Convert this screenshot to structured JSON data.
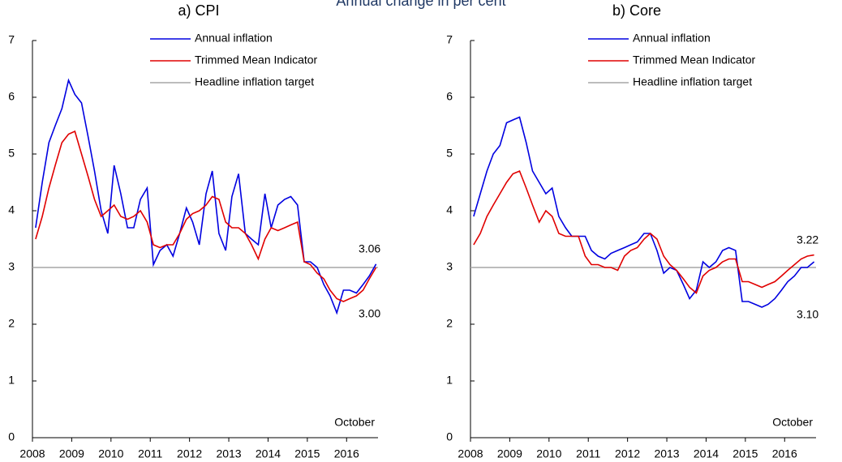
{
  "title": "Annual change in per cent",
  "chart_data": [
    {
      "type": "line",
      "title": "a) CPI",
      "note": "October",
      "x": [
        2008.08,
        2008.25,
        2008.42,
        2008.58,
        2008.75,
        2008.92,
        2009.08,
        2009.25,
        2009.42,
        2009.58,
        2009.75,
        2009.92,
        2010.08,
        2010.25,
        2010.42,
        2010.58,
        2010.75,
        2010.92,
        2011.08,
        2011.25,
        2011.42,
        2011.58,
        2011.75,
        2011.92,
        2012.08,
        2012.25,
        2012.42,
        2012.58,
        2012.75,
        2012.92,
        2013.08,
        2013.25,
        2013.42,
        2013.58,
        2013.75,
        2013.92,
        2014.08,
        2014.25,
        2014.42,
        2014.58,
        2014.75,
        2014.92,
        2015.08,
        2015.25,
        2015.42,
        2015.58,
        2015.75,
        2015.92,
        2016.08,
        2016.25,
        2016.42,
        2016.58,
        2016.75
      ],
      "xlim": [
        2008,
        2016.8
      ],
      "xticks": [
        2008,
        2009,
        2010,
        2011,
        2012,
        2013,
        2014,
        2015,
        2016
      ],
      "ylim": [
        0,
        7
      ],
      "yticks": [
        0,
        1,
        2,
        3,
        4,
        5,
        6,
        7
      ],
      "target": {
        "name": "Headline inflation target",
        "color": "#a6a6a6",
        "value": 3
      },
      "series": [
        {
          "name": "Annual inflation",
          "color": "#0000e0",
          "end_label": "3.06",
          "values": [
            3.7,
            4.5,
            5.2,
            5.5,
            5.8,
            6.3,
            6.05,
            5.9,
            5.3,
            4.7,
            4.0,
            3.6,
            4.8,
            4.3,
            3.7,
            3.7,
            4.2,
            4.4,
            3.05,
            3.3,
            3.4,
            3.2,
            3.6,
            4.05,
            3.8,
            3.4,
            4.3,
            4.7,
            3.6,
            3.3,
            4.25,
            4.65,
            3.6,
            3.5,
            3.4,
            4.3,
            3.7,
            4.1,
            4.2,
            4.25,
            4.1,
            3.1,
            3.1,
            3.0,
            2.7,
            2.5,
            2.2,
            2.6,
            2.6,
            2.55,
            2.7,
            2.85,
            3.06
          ]
        },
        {
          "name": "Trimmed Mean Indicator",
          "color": "#e00000",
          "end_label": "3.00",
          "values": [
            3.5,
            3.9,
            4.4,
            4.8,
            5.2,
            5.35,
            5.4,
            5.0,
            4.6,
            4.2,
            3.9,
            4.0,
            4.1,
            3.9,
            3.85,
            3.9,
            4.0,
            3.8,
            3.4,
            3.35,
            3.4,
            3.4,
            3.6,
            3.85,
            3.95,
            4.0,
            4.1,
            4.25,
            4.2,
            3.8,
            3.7,
            3.7,
            3.6,
            3.4,
            3.15,
            3.5,
            3.7,
            3.65,
            3.7,
            3.75,
            3.8,
            3.1,
            3.05,
            2.9,
            2.8,
            2.6,
            2.45,
            2.4,
            2.45,
            2.5,
            2.6,
            2.8,
            3.0
          ]
        }
      ]
    },
    {
      "type": "line",
      "title": "b) Core",
      "note": "October",
      "x": [
        2008.08,
        2008.25,
        2008.42,
        2008.58,
        2008.75,
        2008.92,
        2009.08,
        2009.25,
        2009.42,
        2009.58,
        2009.75,
        2009.92,
        2010.08,
        2010.25,
        2010.42,
        2010.58,
        2010.75,
        2010.92,
        2011.08,
        2011.25,
        2011.42,
        2011.58,
        2011.75,
        2011.92,
        2012.08,
        2012.25,
        2012.42,
        2012.58,
        2012.75,
        2012.92,
        2013.08,
        2013.25,
        2013.42,
        2013.58,
        2013.75,
        2013.92,
        2014.08,
        2014.25,
        2014.42,
        2014.58,
        2014.75,
        2014.92,
        2015.08,
        2015.25,
        2015.42,
        2015.58,
        2015.75,
        2015.92,
        2016.08,
        2016.25,
        2016.42,
        2016.58,
        2016.75
      ],
      "xlim": [
        2008,
        2016.8
      ],
      "xticks": [
        2008,
        2009,
        2010,
        2011,
        2012,
        2013,
        2014,
        2015,
        2016
      ],
      "ylim": [
        0,
        7
      ],
      "yticks": [
        0,
        1,
        2,
        3,
        4,
        5,
        6,
        7
      ],
      "target": {
        "name": "Headline inflation target",
        "color": "#a6a6a6",
        "value": 3
      },
      "series": [
        {
          "name": "Annual inflation",
          "color": "#0000e0",
          "end_label": "3.10",
          "values": [
            3.9,
            4.3,
            4.7,
            5.0,
            5.15,
            5.55,
            5.6,
            5.65,
            5.2,
            4.7,
            4.5,
            4.3,
            4.4,
            3.9,
            3.7,
            3.55,
            3.55,
            3.55,
            3.3,
            3.2,
            3.15,
            3.25,
            3.3,
            3.35,
            3.4,
            3.45,
            3.6,
            3.6,
            3.3,
            2.9,
            3.0,
            2.95,
            2.7,
            2.45,
            2.6,
            3.1,
            3.0,
            3.1,
            3.3,
            3.35,
            3.3,
            2.4,
            2.4,
            2.35,
            2.3,
            2.35,
            2.45,
            2.6,
            2.75,
            2.85,
            3.0,
            3.0,
            3.1
          ]
        },
        {
          "name": "Trimmed Mean Indicator",
          "color": "#e00000",
          "end_label": "3.22",
          "values": [
            3.4,
            3.6,
            3.9,
            4.1,
            4.3,
            4.5,
            4.65,
            4.7,
            4.4,
            4.1,
            3.8,
            4.0,
            3.9,
            3.6,
            3.55,
            3.55,
            3.55,
            3.2,
            3.05,
            3.05,
            3.0,
            3.0,
            2.95,
            3.2,
            3.3,
            3.35,
            3.5,
            3.6,
            3.5,
            3.2,
            3.05,
            2.95,
            2.8,
            2.65,
            2.55,
            2.85,
            2.95,
            3.0,
            3.1,
            3.15,
            3.15,
            2.75,
            2.75,
            2.7,
            2.65,
            2.7,
            2.75,
            2.85,
            2.95,
            3.05,
            3.15,
            3.2,
            3.22
          ]
        }
      ]
    }
  ]
}
